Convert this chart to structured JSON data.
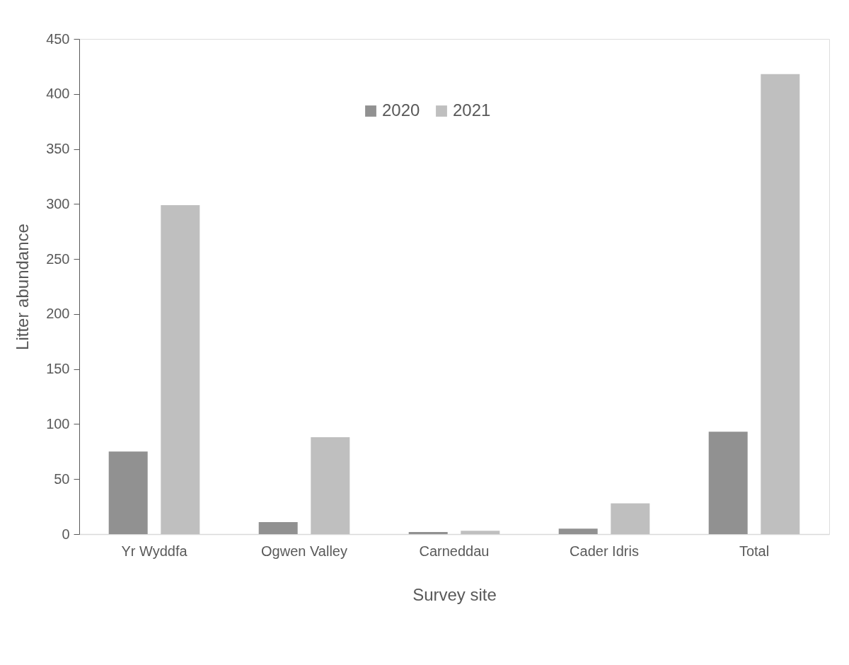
{
  "chart_data": {
    "type": "bar",
    "xlabel": "Survey site",
    "ylabel": "Litter abundance",
    "categories": [
      "Yr Wyddfa",
      "Ogwen Valley",
      "Carneddau",
      "Cader Idris",
      "Total"
    ],
    "series": [
      {
        "name": "2020",
        "color": "#919191",
        "values": [
          75,
          11,
          2,
          5,
          93
        ]
      },
      {
        "name": "2021",
        "color": "#bfbfbf",
        "values": [
          299,
          88,
          3,
          28,
          418
        ]
      }
    ],
    "ylim": [
      0,
      450
    ],
    "yticks": [
      0,
      50,
      100,
      150,
      200,
      250,
      300,
      350,
      400,
      450
    ],
    "grid": false,
    "legend": "top"
  }
}
